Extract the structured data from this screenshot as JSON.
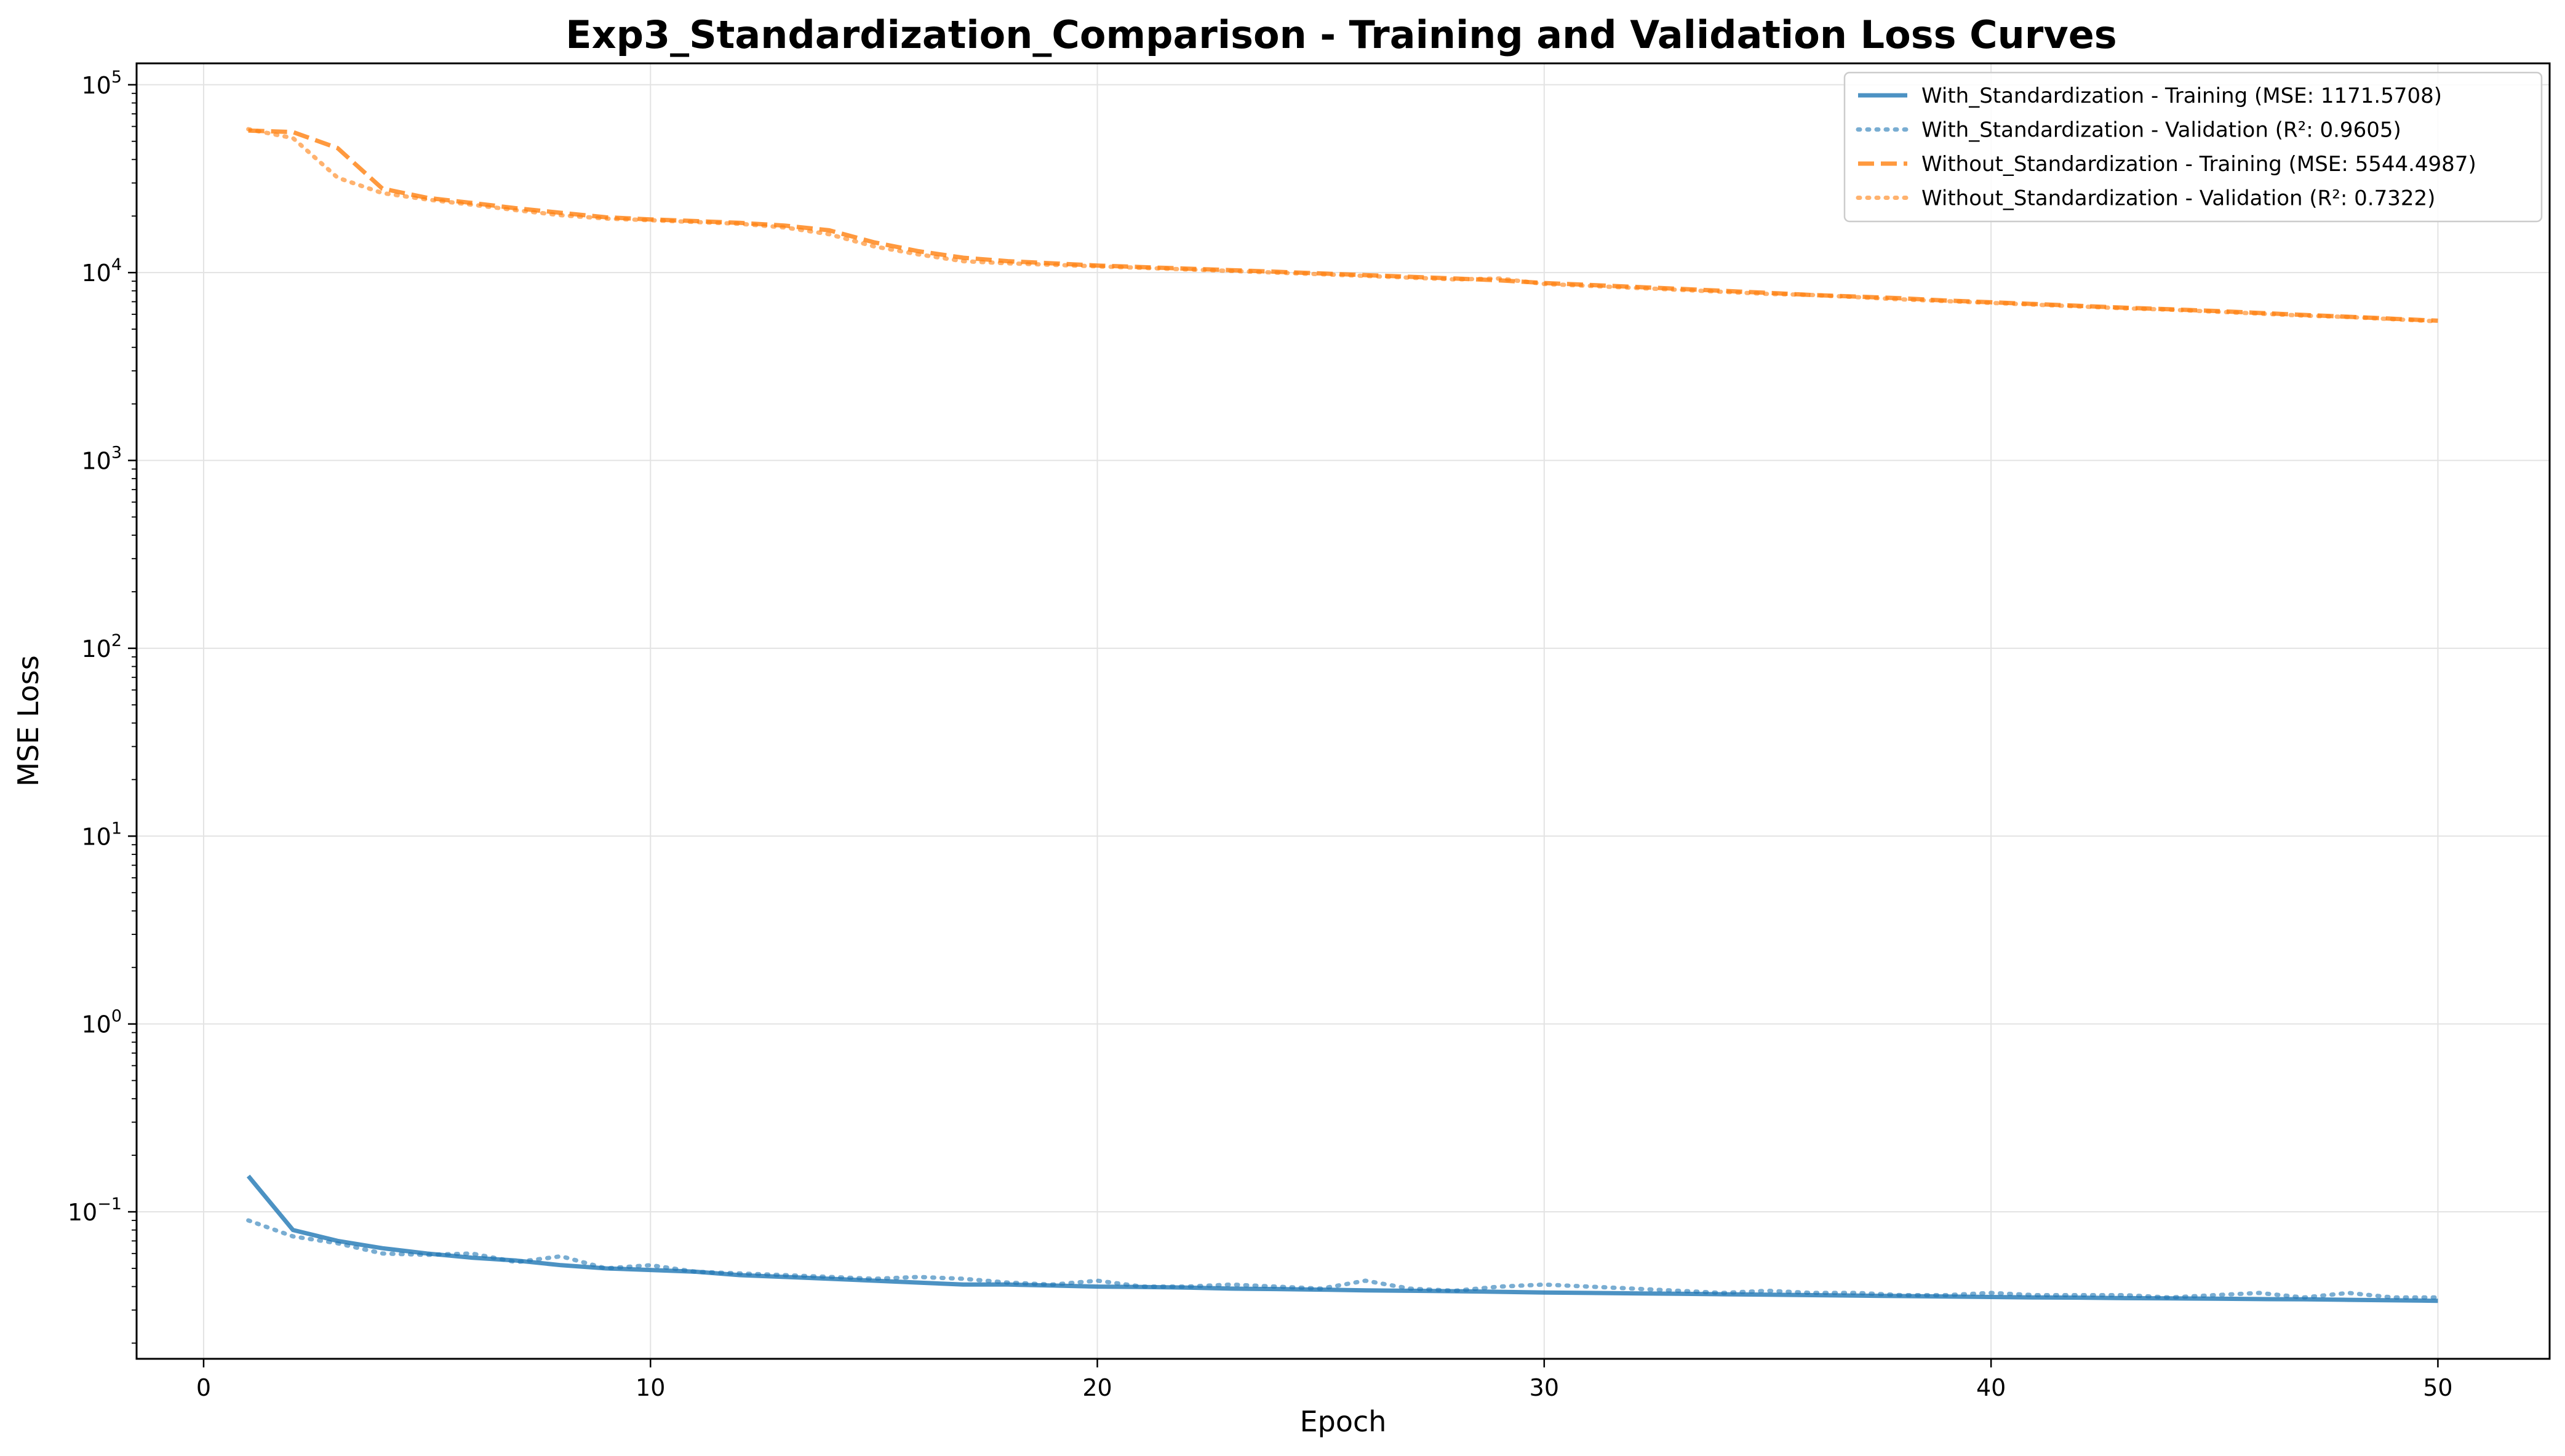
{
  "chart_data": {
    "type": "line",
    "title": "Exp3_Standardization_Comparison - Training and Validation Loss Curves",
    "xlabel": "Epoch",
    "ylabel": "MSE Loss",
    "xlim": [
      -1.5,
      52.5
    ],
    "ylim": [
      0.0165,
      130000
    ],
    "yscale": "log",
    "grid": true,
    "legend_position": "top-right",
    "x_ticks": [
      0,
      10,
      20,
      30,
      40,
      50
    ],
    "y_ticks": [
      {
        "value": 0.1,
        "base": "10",
        "exp": "−1"
      },
      {
        "value": 1,
        "base": "10",
        "exp": "0"
      },
      {
        "value": 10,
        "base": "10",
        "exp": "1"
      },
      {
        "value": 100,
        "base": "10",
        "exp": "2"
      },
      {
        "value": 1000,
        "base": "10",
        "exp": "3"
      },
      {
        "value": 10000,
        "base": "10",
        "exp": "4"
      },
      {
        "value": 100000,
        "base": "10",
        "exp": "5"
      }
    ],
    "x": [
      1,
      2,
      3,
      4,
      5,
      6,
      7,
      8,
      9,
      10,
      11,
      12,
      13,
      14,
      15,
      16,
      17,
      18,
      19,
      20,
      21,
      22,
      23,
      24,
      25,
      26,
      27,
      28,
      29,
      30,
      31,
      32,
      33,
      34,
      35,
      36,
      37,
      38,
      39,
      40,
      41,
      42,
      43,
      44,
      45,
      46,
      47,
      48,
      49,
      50
    ],
    "series": [
      {
        "name": "With_Standardization - Training (MSE: 1171.5708)",
        "color": "#1f77b4",
        "style": "solid",
        "values": [
          0.155,
          0.08,
          0.07,
          0.064,
          0.06,
          0.057,
          0.055,
          0.052,
          0.05,
          0.049,
          0.048,
          0.046,
          0.045,
          0.044,
          0.043,
          0.042,
          0.041,
          0.041,
          0.0405,
          0.04,
          0.0398,
          0.0395,
          0.039,
          0.0388,
          0.0385,
          0.0382,
          0.038,
          0.0378,
          0.0375,
          0.0372,
          0.037,
          0.0368,
          0.0366,
          0.0364,
          0.0362,
          0.036,
          0.0358,
          0.0356,
          0.0354,
          0.0352,
          0.035,
          0.0349,
          0.0347,
          0.0346,
          0.0345,
          0.0343,
          0.0342,
          0.034,
          0.0338,
          0.0336
        ]
      },
      {
        "name": "With_Standardization - Validation (R²: 0.9605)",
        "color": "#1f77b4",
        "style": "dotted",
        "values": [
          0.09,
          0.074,
          0.068,
          0.06,
          0.059,
          0.06,
          0.054,
          0.058,
          0.05,
          0.052,
          0.048,
          0.047,
          0.046,
          0.045,
          0.044,
          0.045,
          0.044,
          0.042,
          0.041,
          0.043,
          0.04,
          0.04,
          0.041,
          0.04,
          0.039,
          0.043,
          0.039,
          0.038,
          0.04,
          0.041,
          0.04,
          0.039,
          0.038,
          0.037,
          0.038,
          0.037,
          0.037,
          0.036,
          0.036,
          0.037,
          0.036,
          0.036,
          0.036,
          0.035,
          0.036,
          0.037,
          0.035,
          0.037,
          0.035,
          0.035
        ]
      },
      {
        "name": "Without_Standardization - Training (MSE: 5544.4987)",
        "color": "#ff7f0e",
        "style": "dashed",
        "values": [
          57000,
          56000,
          46000,
          28000,
          25000,
          23500,
          22000,
          20800,
          19700,
          19200,
          18800,
          18400,
          17800,
          16800,
          14500,
          13000,
          12000,
          11500,
          11200,
          10900,
          10700,
          10500,
          10300,
          10100,
          9900,
          9700,
          9500,
          9300,
          9100,
          8800,
          8600,
          8400,
          8200,
          8000,
          7800,
          7600,
          7450,
          7300,
          7100,
          6950,
          6800,
          6650,
          6500,
          6380,
          6250,
          6100,
          5950,
          5820,
          5680,
          5544
        ]
      },
      {
        "name": "Without_Standardization - Validation (R²: 0.7322)",
        "color": "#ff7f0e",
        "style": "dotted",
        "values": [
          58000,
          52000,
          32000,
          26500,
          24500,
          23000,
          21500,
          20200,
          19400,
          19000,
          18600,
          18200,
          17400,
          16000,
          13800,
          12500,
          11500,
          11200,
          11000,
          10800,
          10600,
          10400,
          10200,
          10000,
          9800,
          9600,
          9400,
          9200,
          9300,
          8700,
          8500,
          8300,
          8100,
          7900,
          7700,
          7600,
          7400,
          7200,
          7050,
          6900,
          6750,
          6600,
          6450,
          6350,
          6200,
          6050,
          5900,
          5800,
          5650,
          5500
        ]
      }
    ]
  }
}
